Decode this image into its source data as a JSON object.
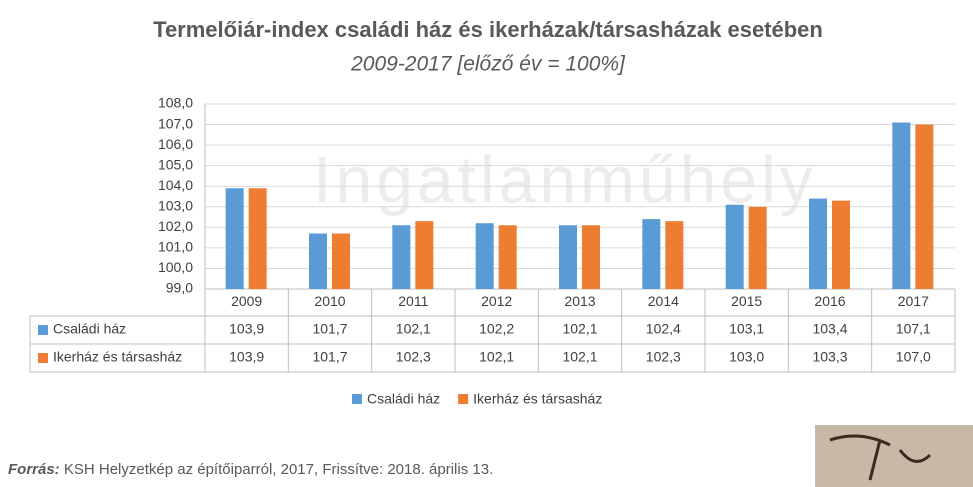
{
  "chart_data": {
    "type": "bar",
    "title": "Termelőiár-index családi ház és ikerházak/társasházak esetében",
    "subtitle": "2009-2017 [előző év = 100%]",
    "watermark": "Ingatlanműhely",
    "categories": [
      "2009",
      "2010",
      "2011",
      "2012",
      "2013",
      "2014",
      "2015",
      "2016",
      "2017"
    ],
    "series": [
      {
        "name": "Családi ház",
        "color": "#5b9bd5",
        "values": [
          103.9,
          101.7,
          102.1,
          102.2,
          102.1,
          102.4,
          103.1,
          103.4,
          107.1
        ],
        "value_labels": [
          "103,9",
          "101,7",
          "102,1",
          "102,2",
          "102,1",
          "102,4",
          "103,1",
          "103,4",
          "107,1"
        ]
      },
      {
        "name": "Ikerház és társasház",
        "color": "#ed7d31",
        "values": [
          103.9,
          101.7,
          102.3,
          102.1,
          102.1,
          102.3,
          103.0,
          103.3,
          107.0
        ],
        "value_labels": [
          "103,9",
          "101,7",
          "102,3",
          "102,1",
          "102,1",
          "102,3",
          "103,0",
          "103,3",
          "107,0"
        ]
      }
    ],
    "ylim": [
      99,
      108
    ],
    "yticks": [
      {
        "value": 99,
        "label": "99,0"
      },
      {
        "value": 100,
        "label": "100,0"
      },
      {
        "value": 101,
        "label": "101,0"
      },
      {
        "value": 102,
        "label": "102,0"
      },
      {
        "value": 103,
        "label": "103,0"
      },
      {
        "value": 104,
        "label": "104,0"
      },
      {
        "value": 105,
        "label": "105,0"
      },
      {
        "value": 106,
        "label": "106,0"
      },
      {
        "value": 107,
        "label": "107,0"
      },
      {
        "value": 108,
        "label": "108,0"
      }
    ],
    "grid": true,
    "source_label": "Forrás:",
    "source_text": " KSH Helyzetkép az építőiparról, 2017, Frissítve: 2018. április 13."
  }
}
